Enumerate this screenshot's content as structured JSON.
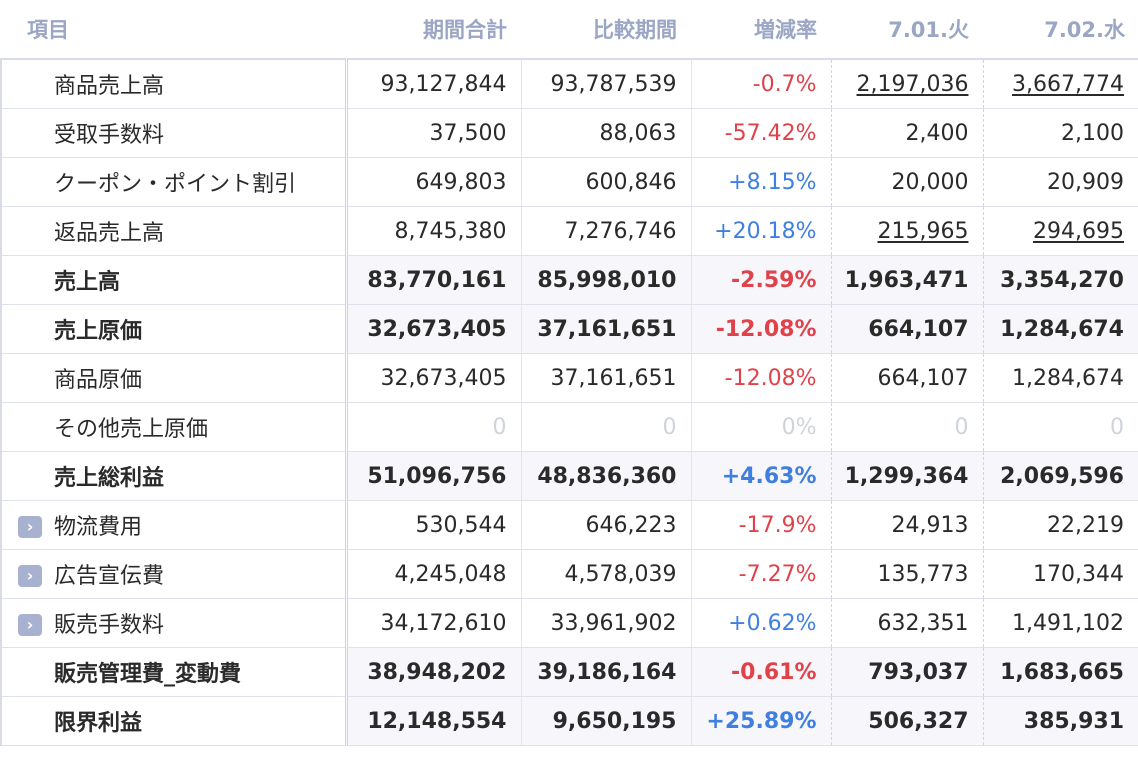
{
  "header": {
    "item": "項目",
    "period_total": "期間合計",
    "comparison": "比較期間",
    "change_rate": "増減率",
    "day1": "7.01.火",
    "day2": "7.02.水"
  },
  "rows": [
    {
      "label": "商品売上高",
      "total": "93,127,844",
      "comp": "93,787,539",
      "rate": "-0.7%",
      "d1": "2,197,036",
      "d2": "3,667,774"
    },
    {
      "label": "受取手数料",
      "total": "37,500",
      "comp": "88,063",
      "rate": "-57.42%",
      "d1": "2,400",
      "d2": "2,100"
    },
    {
      "label": "クーポン・ポイント割引",
      "total": "649,803",
      "comp": "600,846",
      "rate": "+8.15%",
      "d1": "20,000",
      "d2": "20,909"
    },
    {
      "label": "返品売上高",
      "total": "8,745,380",
      "comp": "7,276,746",
      "rate": "+20.18%",
      "d1": "215,965",
      "d2": "294,695"
    },
    {
      "label": "売上高",
      "total": "83,770,161",
      "comp": "85,998,010",
      "rate": "-2.59%",
      "d1": "1,963,471",
      "d2": "3,354,270"
    },
    {
      "label": "売上原価",
      "total": "32,673,405",
      "comp": "37,161,651",
      "rate": "-12.08%",
      "d1": "664,107",
      "d2": "1,284,674"
    },
    {
      "label": "商品原価",
      "total": "32,673,405",
      "comp": "37,161,651",
      "rate": "-12.08%",
      "d1": "664,107",
      "d2": "1,284,674"
    },
    {
      "label": "その他売上原価",
      "total": "0",
      "comp": "0",
      "rate": "0%",
      "d1": "0",
      "d2": "0"
    },
    {
      "label": "売上総利益",
      "total": "51,096,756",
      "comp": "48,836,360",
      "rate": "+4.63%",
      "d1": "1,299,364",
      "d2": "2,069,596"
    },
    {
      "label": "物流費用",
      "total": "530,544",
      "comp": "646,223",
      "rate": "-17.9%",
      "d1": "24,913",
      "d2": "22,219"
    },
    {
      "label": "広告宣伝費",
      "total": "4,245,048",
      "comp": "4,578,039",
      "rate": "-7.27%",
      "d1": "135,773",
      "d2": "170,344"
    },
    {
      "label": "販売手数料",
      "total": "34,172,610",
      "comp": "33,961,902",
      "rate": "+0.62%",
      "d1": "632,351",
      "d2": "1,491,102"
    },
    {
      "label": "販売管理費_変動費",
      "total": "38,948,202",
      "comp": "39,186,164",
      "rate": "-0.61%",
      "d1": "793,037",
      "d2": "1,683,665"
    },
    {
      "label": "限界利益",
      "total": "12,148,554",
      "comp": "9,650,195",
      "rate": "+25.89%",
      "d1": "506,327",
      "d2": "385,931"
    }
  ],
  "expander_icon": "chevron-right-icon",
  "colors": {
    "negative": "#e0424a",
    "positive": "#3f7fe0",
    "header": "#9aa6c4",
    "expander": "#a8b1cf"
  }
}
